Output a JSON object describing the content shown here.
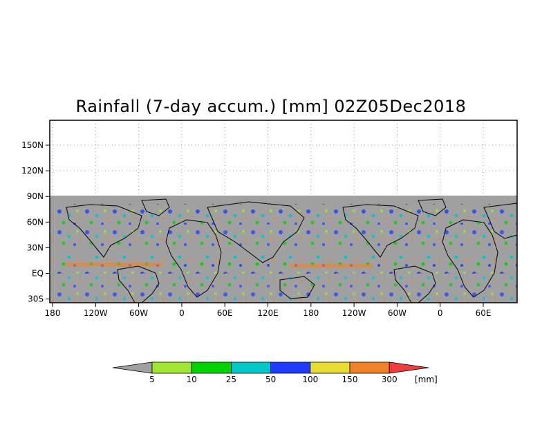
{
  "title": "Rainfall (7-day accum.) [mm] 02Z05Dec2018",
  "map": {
    "x_ticks": [
      "180",
      "120W",
      "60W",
      "0",
      "60E",
      "120E",
      "180",
      "120W",
      "60W",
      "0",
      "60E"
    ],
    "y_ticks": [
      "150N",
      "120N",
      "90N",
      "60N",
      "30N",
      "EQ",
      "30S"
    ],
    "no_data_color": "#a0a0a0",
    "coast_color": "#000000",
    "grid": "dotted"
  },
  "colorbar": {
    "labels": [
      "5",
      "10",
      "25",
      "50",
      "100",
      "150",
      "300"
    ],
    "unit": "[mm]",
    "below_color": "#a0a0a0",
    "above_color": "#f03c3c",
    "colors": [
      "#a0e632",
      "#00d200",
      "#00c8c8",
      "#1e3cff",
      "#e6dc32",
      "#f08228"
    ]
  }
}
